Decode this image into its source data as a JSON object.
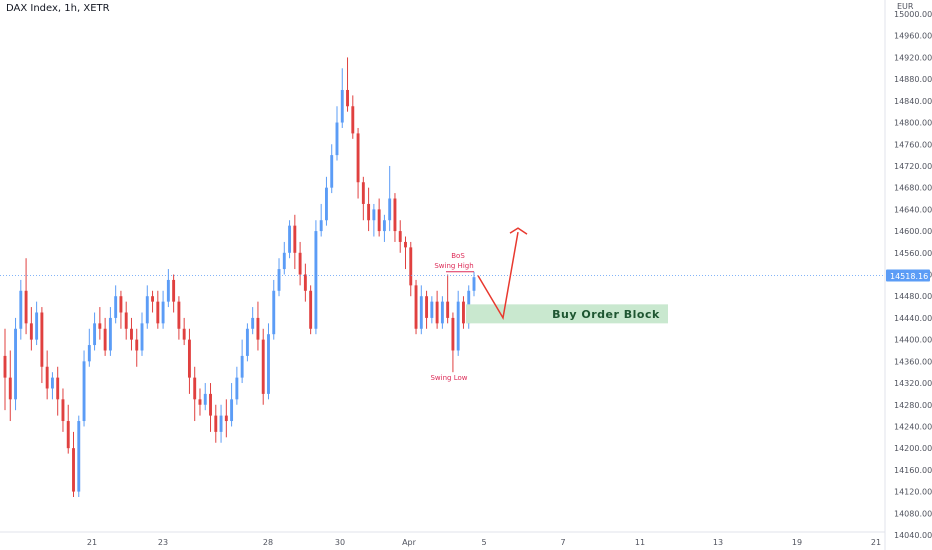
{
  "header": {
    "title": "DAX Index, 1h, XETR",
    "currency": "EUR"
  },
  "colors": {
    "up": "#5b9cf6",
    "down": "#e0403f",
    "annotation": "#dd2c58",
    "arrow": "#e8392f",
    "zone_fill": "#c9e8cf",
    "zone_text": "#1e5631",
    "last_price_bg": "#5b9cf6"
  },
  "chart_data": {
    "type": "candlestick",
    "price_axis": {
      "ticks": [
        "15000.00",
        "14960.00",
        "14920.00",
        "14880.00",
        "14840.00",
        "14800.00",
        "14760.00",
        "14720.00",
        "14680.00",
        "14640.00",
        "14600.00",
        "14560.00",
        "14520.00",
        "14480.00",
        "14440.00",
        "14400.00",
        "14360.00",
        "14320.00",
        "14280.00",
        "14240.00",
        "14200.00",
        "14160.00",
        "14120.00",
        "14080.00",
        "14040.00"
      ],
      "range": [
        14020,
        15010
      ]
    },
    "time_axis": {
      "ticks": [
        "21",
        "23",
        "28",
        "30",
        "Apr",
        "5",
        "7",
        "11",
        "13",
        "19",
        "21"
      ]
    },
    "last_price": "14518.16",
    "annotations": {
      "bos": "BoS",
      "swing_high": "Swing High",
      "swing_low": "Swing Low",
      "zone": "Buy Order Block"
    },
    "zone": {
      "low": 14430,
      "high": 14465
    },
    "projection": [
      [
        14440,
        "zone-touch"
      ],
      [
        14598,
        "target"
      ]
    ],
    "candles": [
      [
        14370,
        14330,
        14420,
        14270
      ],
      [
        14330,
        14290,
        14380,
        14250
      ],
      [
        14290,
        14420,
        14440,
        14270
      ],
      [
        14420,
        14490,
        14510,
        14400
      ],
      [
        14490,
        14430,
        14550,
        14410
      ],
      [
        14430,
        14400,
        14460,
        14380
      ],
      [
        14400,
        14450,
        14470,
        14390
      ],
      [
        14450,
        14350,
        14460,
        14320
      ],
      [
        14350,
        14310,
        14380,
        14290
      ],
      [
        14310,
        14330,
        14340,
        14290
      ],
      [
        14330,
        14290,
        14350,
        14260
      ],
      [
        14290,
        14250,
        14310,
        14230
      ],
      [
        14250,
        14200,
        14280,
        14190
      ],
      [
        14200,
        14120,
        14230,
        14110
      ],
      [
        14120,
        14250,
        14260,
        14110
      ],
      [
        14250,
        14360,
        14380,
        14240
      ],
      [
        14360,
        14390,
        14420,
        14350
      ],
      [
        14390,
        14430,
        14450,
        14380
      ],
      [
        14430,
        14420,
        14460,
        14400
      ],
      [
        14420,
        14380,
        14440,
        14370
      ],
      [
        14380,
        14440,
        14460,
        14370
      ],
      [
        14440,
        14480,
        14500,
        14430
      ],
      [
        14480,
        14450,
        14490,
        14420
      ],
      [
        14450,
        14420,
        14470,
        14400
      ],
      [
        14420,
        14400,
        14440,
        14380
      ],
      [
        14400,
        14380,
        14420,
        14350
      ],
      [
        14380,
        14430,
        14450,
        14370
      ],
      [
        14430,
        14480,
        14500,
        14420
      ],
      [
        14480,
        14470,
        14490,
        14450
      ],
      [
        14470,
        14430,
        14490,
        14420
      ],
      [
        14430,
        14470,
        14490,
        14420
      ],
      [
        14470,
        14510,
        14530,
        14460
      ],
      [
        14510,
        14470,
        14520,
        14450
      ],
      [
        14470,
        14420,
        14480,
        14400
      ],
      [
        14420,
        14400,
        14440,
        14390
      ],
      [
        14400,
        14330,
        14420,
        14300
      ],
      [
        14330,
        14290,
        14350,
        14250
      ],
      [
        14290,
        14280,
        14310,
        14260
      ],
      [
        14280,
        14300,
        14320,
        14270
      ],
      [
        14300,
        14260,
        14320,
        14230
      ],
      [
        14260,
        14230,
        14280,
        14210
      ],
      [
        14230,
        14260,
        14280,
        14210
      ],
      [
        14260,
        14250,
        14290,
        14220
      ],
      [
        14250,
        14290,
        14320,
        14240
      ],
      [
        14290,
        14330,
        14350,
        14280
      ],
      [
        14330,
        14370,
        14400,
        14320
      ],
      [
        14370,
        14420,
        14430,
        14360
      ],
      [
        14420,
        14440,
        14460,
        14410
      ],
      [
        14440,
        14400,
        14470,
        14380
      ],
      [
        14400,
        14300,
        14420,
        14280
      ],
      [
        14300,
        14410,
        14430,
        14290
      ],
      [
        14410,
        14490,
        14510,
        14400
      ],
      [
        14490,
        14530,
        14550,
        14480
      ],
      [
        14530,
        14560,
        14580,
        14520
      ],
      [
        14560,
        14610,
        14620,
        14550
      ],
      [
        14610,
        14560,
        14630,
        14530
      ],
      [
        14560,
        14520,
        14580,
        14500
      ],
      [
        14520,
        14490,
        14540,
        14470
      ],
      [
        14490,
        14420,
        14500,
        14410
      ],
      [
        14420,
        14600,
        14620,
        14410
      ],
      [
        14600,
        14620,
        14650,
        14590
      ],
      [
        14620,
        14680,
        14700,
        14610
      ],
      [
        14680,
        14740,
        14760,
        14670
      ],
      [
        14740,
        14800,
        14830,
        14730
      ],
      [
        14800,
        14860,
        14900,
        14790
      ],
      [
        14860,
        14830,
        14920,
        14820
      ],
      [
        14830,
        14780,
        14850,
        14770
      ],
      [
        14780,
        14690,
        14790,
        14660
      ],
      [
        14690,
        14650,
        14700,
        14620
      ],
      [
        14650,
        14620,
        14680,
        14600
      ],
      [
        14620,
        14640,
        14650,
        14590
      ],
      [
        14640,
        14600,
        14660,
        14590
      ],
      [
        14600,
        14620,
        14630,
        14580
      ],
      [
        14620,
        14660,
        14720,
        14600
      ],
      [
        14660,
        14600,
        14670,
        14580
      ],
      [
        14600,
        14580,
        14620,
        14560
      ],
      [
        14580,
        14570,
        14590,
        14530
      ],
      [
        14570,
        14500,
        14580,
        14480
      ],
      [
        14500,
        14420,
        14510,
        14410
      ],
      [
        14420,
        14480,
        14500,
        14410
      ],
      [
        14480,
        14440,
        14490,
        14420
      ],
      [
        14440,
        14470,
        14480,
        14430
      ],
      [
        14470,
        14430,
        14490,
        14420
      ],
      [
        14430,
        14470,
        14480,
        14420
      ],
      [
        14470,
        14440,
        14520,
        14430
      ],
      [
        14440,
        14380,
        14450,
        14340
      ],
      [
        14380,
        14470,
        14490,
        14370
      ],
      [
        14470,
        14430,
        14480,
        14420
      ],
      [
        14430,
        14490,
        14500,
        14420
      ],
      [
        14490,
        14515,
        14525,
        14480
      ]
    ]
  }
}
